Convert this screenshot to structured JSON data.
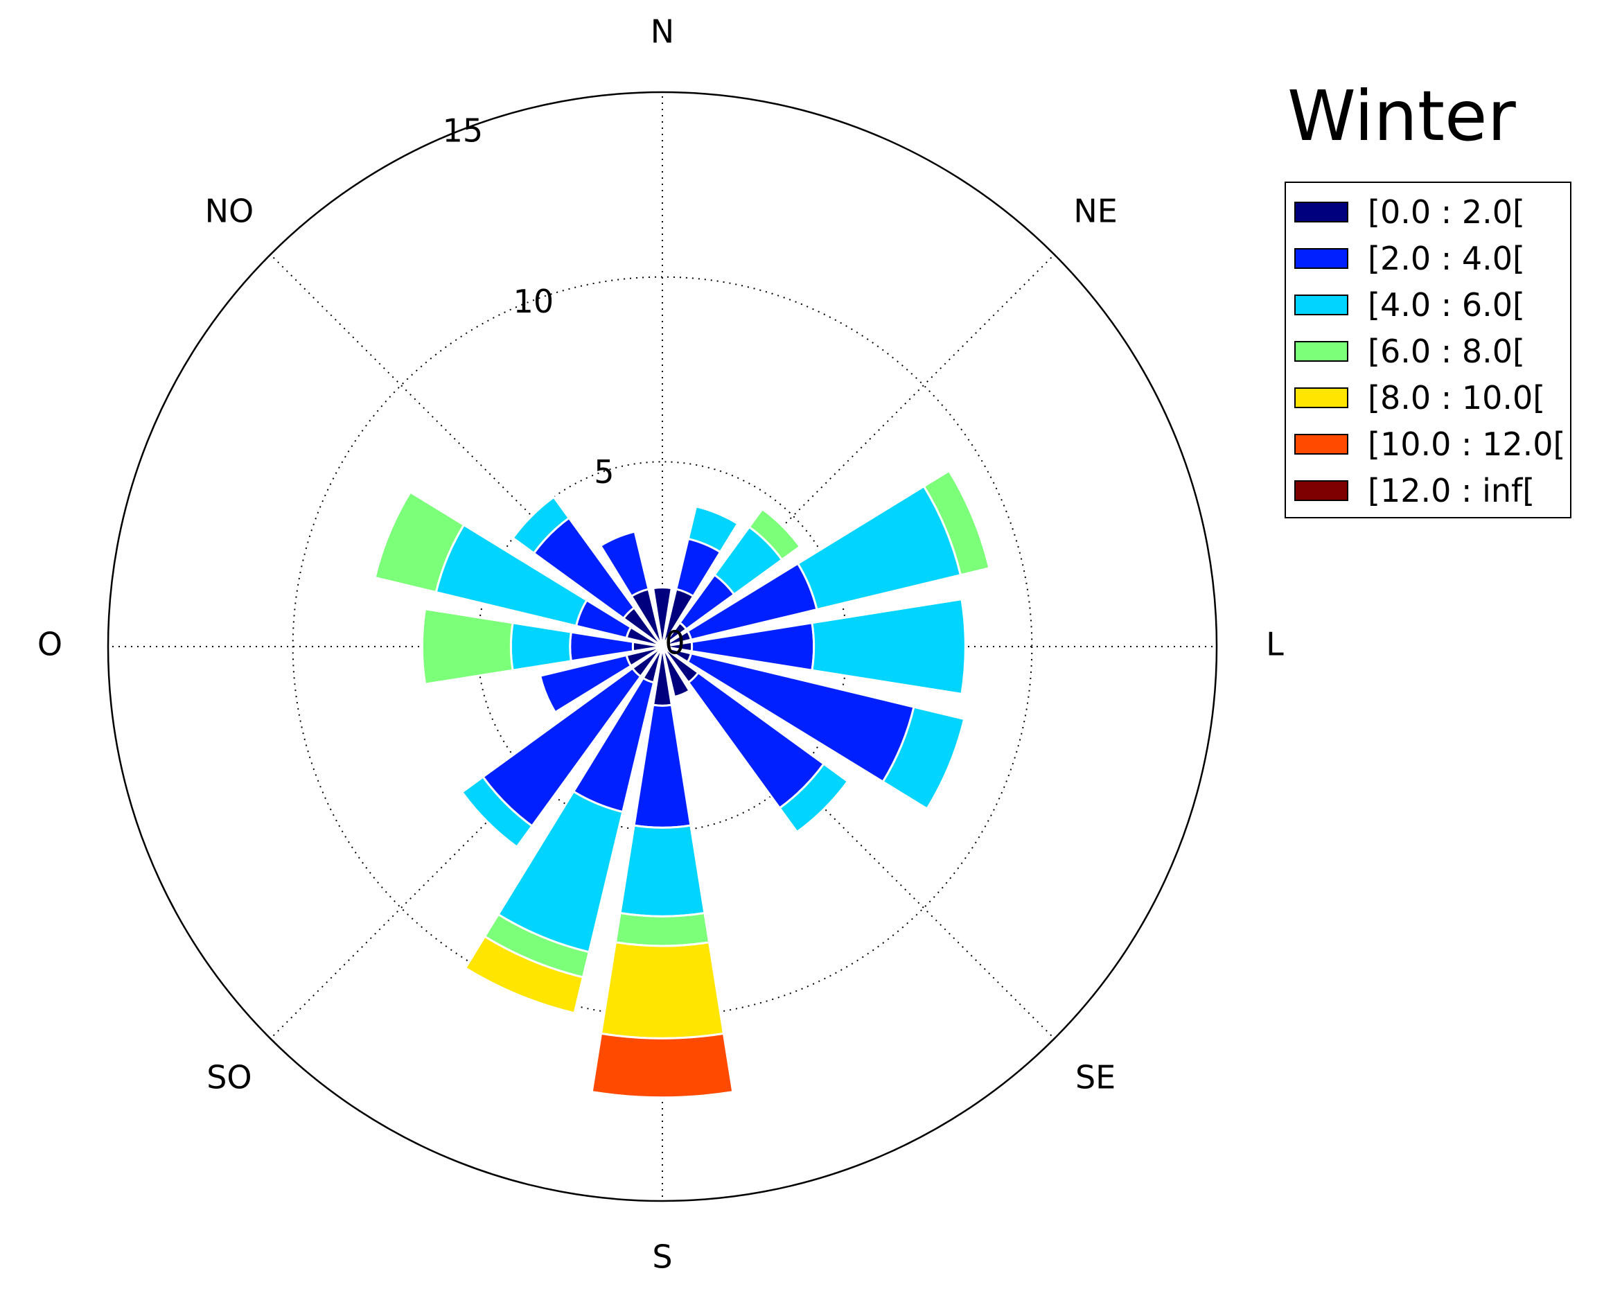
{
  "chart_data": {
    "type": "windrose",
    "title": "Winter",
    "directions": [
      "N",
      "NNE",
      "NE",
      "ENE",
      "L",
      "ESE",
      "SE",
      "SSE",
      "S",
      "SSW",
      "SO",
      "WSW",
      "O",
      "WNW",
      "NO",
      "NNW"
    ],
    "direction_labels": [
      "N",
      "NE",
      "L",
      "SE",
      "S",
      "SO",
      "O",
      "NO"
    ],
    "r_ticks": [
      "0",
      "5",
      "10",
      "15"
    ],
    "rmax": 15,
    "grid": true,
    "legend_position": "right",
    "bins": [
      {
        "name": "[0.0 : 2.0[",
        "color": "#00007f"
      },
      {
        "name": "[2.0 : 4.0[",
        "color": "#0020ff"
      },
      {
        "name": "[4.0 : 6.0[",
        "color": "#00d4ff"
      },
      {
        "name": "[6.0 : 8.0[",
        "color": "#7cff79"
      },
      {
        "name": "[8.0 : 10.0[",
        "color": "#ffe500"
      },
      {
        "name": "[10.0 : 12.0[",
        "color": "#ff4a00"
      },
      {
        "name": "[12.0 : inf[",
        "color": "#7f0000"
      }
    ],
    "cumulative": [
      [
        1.6,
        1.6,
        1.6,
        1.6,
        1.6,
        1.6,
        1.6
      ],
      [
        1.6,
        3.0,
        3.9,
        3.9,
        3.9,
        3.9,
        3.9
      ],
      [
        0.8,
        2.4,
        4.0,
        4.6,
        4.6,
        4.6,
        4.6
      ],
      [
        0.8,
        4.3,
        8.3,
        9.1,
        9.1,
        9.1,
        9.1
      ],
      [
        0.8,
        4.1,
        8.2,
        8.2,
        8.2,
        8.2,
        8.2
      ],
      [
        0.8,
        7.0,
        8.4,
        8.4,
        8.4,
        8.4,
        8.4
      ],
      [
        1.2,
        5.4,
        6.2,
        6.2,
        6.2,
        6.2,
        6.2
      ],
      [
        1.4,
        1.4,
        1.4,
        1.4,
        1.4,
        1.4,
        1.4
      ],
      [
        1.6,
        4.9,
        7.3,
        8.1,
        10.6,
        12.2,
        12.2
      ],
      [
        1.0,
        4.6,
        8.5,
        9.2,
        10.2,
        10.2,
        10.2
      ],
      [
        1.0,
        6.0,
        6.7,
        6.7,
        6.7,
        6.7,
        6.7
      ],
      [
        1.0,
        3.4,
        3.4,
        3.4,
        3.4,
        3.4,
        3.4
      ],
      [
        0.8,
        2.5,
        4.1,
        6.5,
        6.5,
        6.5,
        6.5
      ],
      [
        1.0,
        2.4,
        6.3,
        8.0,
        8.0,
        8.0,
        8.0
      ],
      [
        1.3,
        4.3,
        5.0,
        5.0,
        5.0,
        5.0,
        5.0
      ],
      [
        1.6,
        3.2,
        3.2,
        3.2,
        3.2,
        3.2,
        3.2
      ]
    ]
  }
}
